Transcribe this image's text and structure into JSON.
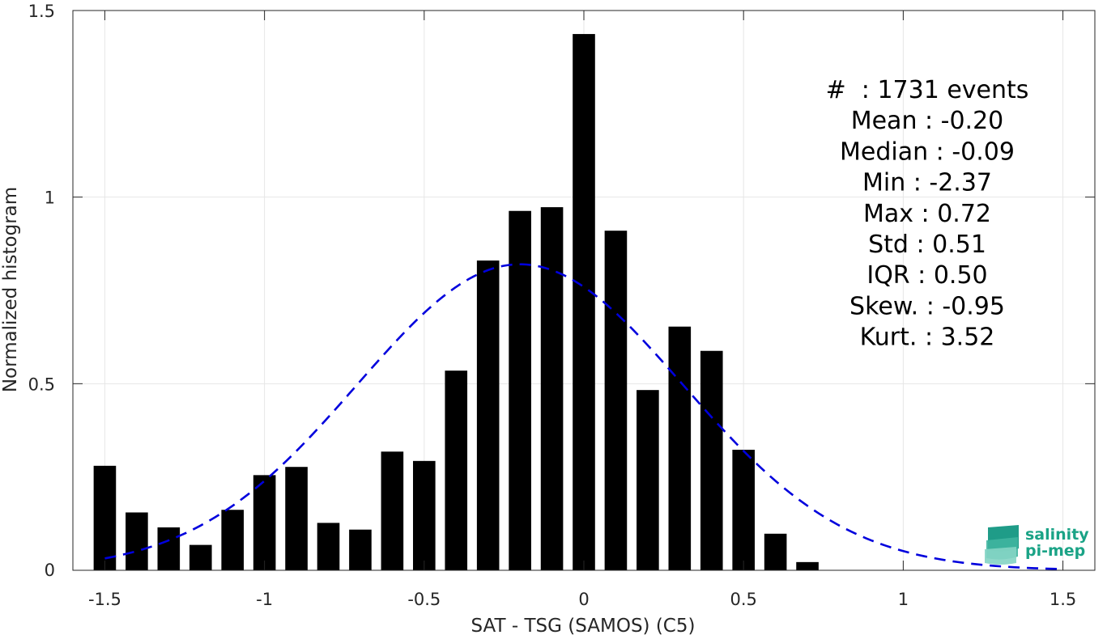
{
  "chart_data": {
    "type": "bar",
    "xlabel": "SAT - TSG (SAMOS) (C5)",
    "ylabel": "Normalized histogram",
    "xlim": [
      -1.6,
      1.6
    ],
    "ylim": [
      0,
      1.5
    ],
    "xticks": [
      -1.5,
      -1,
      -0.5,
      0,
      0.5,
      1,
      1.5
    ],
    "xtick_labels": [
      "-1.5",
      "-1",
      "-0.5",
      "0",
      "0.5",
      "1",
      "1.5"
    ],
    "yticks": [
      0,
      0.5,
      1,
      1.5
    ],
    "ytick_labels": [
      "0",
      "0.5",
      "1",
      "1.5"
    ],
    "grid": true,
    "bar_width": 0.07,
    "bar_color": "#000000",
    "bars": {
      "x": [
        -1.5,
        -1.4,
        -1.3,
        -1.2,
        -1.1,
        -1.0,
        -0.9,
        -0.8,
        -0.7,
        -0.6,
        -0.5,
        -0.4,
        -0.3,
        -0.2,
        -0.1,
        0.0,
        0.1,
        0.2,
        0.3,
        0.4,
        0.5,
        0.6,
        0.7
      ],
      "values": [
        0.28,
        0.155,
        0.115,
        0.068,
        0.162,
        0.255,
        0.277,
        0.127,
        0.109,
        0.318,
        0.293,
        0.535,
        0.83,
        0.963,
        0.973,
        1.437,
        0.91,
        0.483,
        0.653,
        0.588,
        0.323,
        0.098,
        0.022
      ]
    },
    "fit": {
      "type": "gaussian",
      "style": "dashed",
      "color": "#0000dd",
      "mean": -0.2,
      "std": 0.51,
      "x_range": [
        -1.5,
        1.5
      ],
      "peak": 0.82
    },
    "stats": {
      "lines": [
        "#  : 1731 events",
        "Mean : -0.20",
        "Median : -0.09",
        "Min : -2.37",
        "Max : 0.72",
        "Std : 0.51",
        "IQR : 0.50",
        "Skew. : -0.95",
        "Kurt. : 3.52"
      ]
    }
  },
  "logo": {
    "line1": "salinity",
    "line2": "pi-mep",
    "color": "#1aa386"
  }
}
